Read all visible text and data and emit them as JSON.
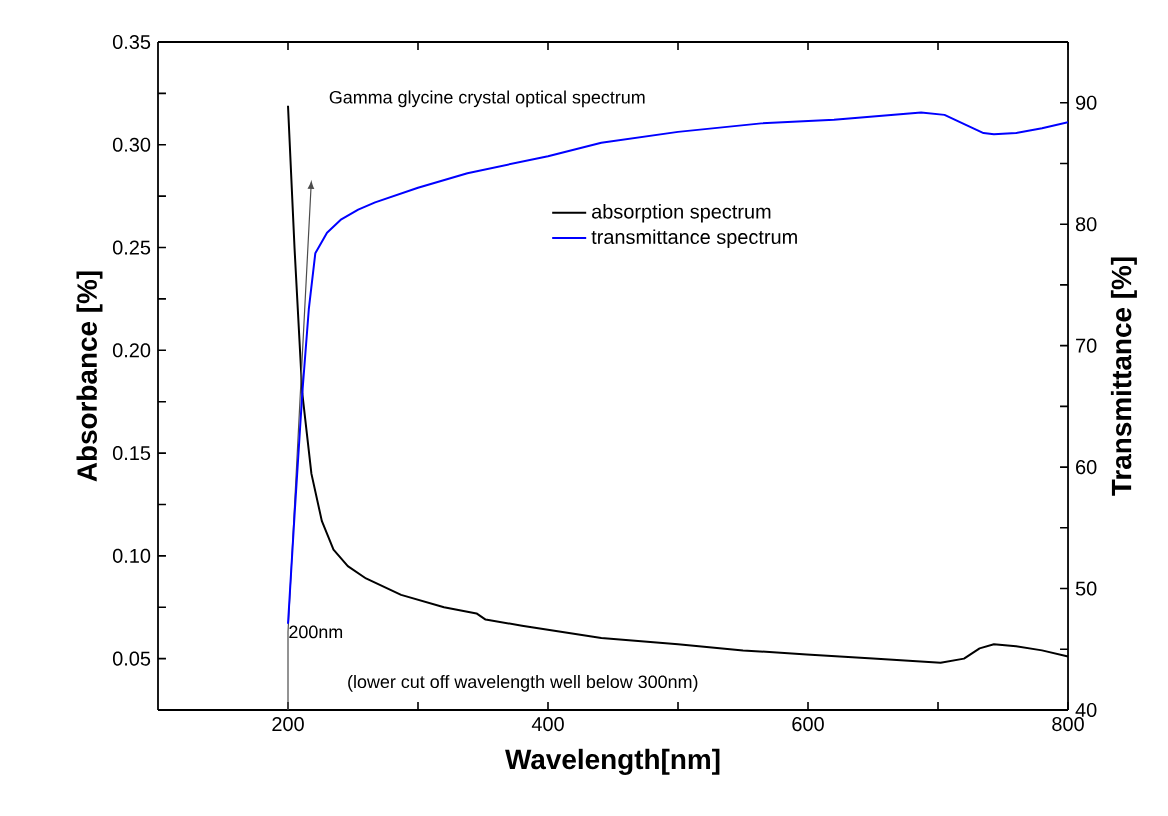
{
  "chart_data": {
    "type": "line",
    "title": "Gamma glycine crystal optical spectrum",
    "xlabel": "Wavelength[nm]",
    "ylabel": "Absorbance [%]",
    "y2label": "Transmittance [%]",
    "xlim": [
      100,
      800
    ],
    "xticks": [
      200,
      {
        "value": 300,
        "label": null
      },
      400,
      {
        "value": 500,
        "label": null
      },
      600,
      {
        "value": 700,
        "label": null
      },
      800
    ],
    "ylim": [
      0.025,
      0.35
    ],
    "yticks": [
      0.05,
      {
        "value": 0.075,
        "label": null
      },
      {
        "value": 0.1,
        "label": "0.10"
      },
      {
        "value": 0.125,
        "label": null
      },
      0.15,
      {
        "value": 0.175,
        "label": null
      },
      {
        "value": 0.2,
        "label": "0.20"
      },
      {
        "value": 0.225,
        "label": null
      },
      0.25,
      {
        "value": 0.275,
        "label": null
      },
      {
        "value": 0.3,
        "label": "0.30"
      },
      {
        "value": 0.325,
        "label": null
      },
      0.35
    ],
    "y2lim": [
      40,
      95
    ],
    "y2ticks": [
      40,
      {
        "value": 45,
        "label": null
      },
      50,
      {
        "value": 55,
        "label": null
      },
      60,
      {
        "value": 65,
        "label": null
      },
      70,
      {
        "value": 75,
        "label": null
      },
      80,
      {
        "value": 85,
        "label": null
      },
      90
    ],
    "legend": "top",
    "grid": false,
    "marker": "none",
    "line_style": "solid",
    "series": [
      {
        "name": "absorption spectrum",
        "color": "#000000",
        "x": [
          200,
          205,
          211,
          218,
          226,
          235,
          246,
          260,
          287,
          320,
          345,
          352,
          380,
          441,
          500,
          550,
          599,
          650,
          702,
          720,
          732,
          743,
          760,
          780,
          800
        ],
        "values": [
          0.319,
          0.25,
          0.179,
          0.14,
          0.117,
          0.103,
          0.095,
          0.089,
          0.081,
          0.075,
          0.072,
          0.069,
          0.066,
          0.06,
          0.057,
          0.054,
          0.052,
          0.05,
          0.048,
          0.05,
          0.055,
          0.057,
          0.056,
          0.054,
          0.051
        ]
      },
      {
        "name": "transmittance spectrum",
        "color": "#0000ff",
        "axis": "y2",
        "x": [
          200,
          205,
          211,
          216,
          221,
          230,
          241,
          254,
          267,
          300,
          338,
          400,
          441,
          500,
          564,
          620,
          687,
          705,
          721,
          735,
          743,
          760,
          780,
          800
        ],
        "values": [
          47.1,
          56,
          66.1,
          73,
          77.6,
          79.3,
          80.4,
          81.2,
          81.8,
          83,
          84.2,
          85.6,
          86.7,
          87.6,
          88.3,
          88.6,
          89.2,
          89,
          88.2,
          87.5,
          87.4,
          87.5,
          87.9,
          88.4
        ]
      }
    ],
    "annotations": [
      {
        "text": "200nm",
        "x": 200,
        "y": 0.063
      },
      "(lower cut off wavelength well below 300nm)"
    ]
  }
}
